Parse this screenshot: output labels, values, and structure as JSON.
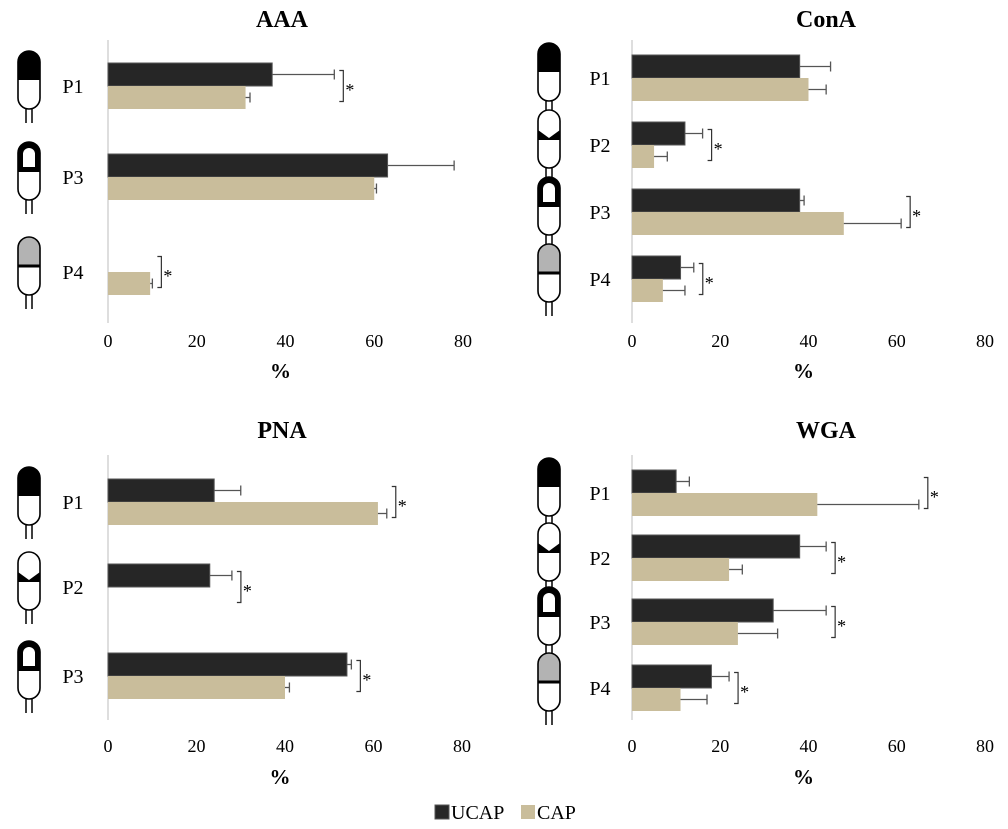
{
  "colors": {
    "UCAP": "#262626",
    "CAP": "#c9bd9b",
    "gray_fill": "#b3b3b3"
  },
  "legend": [
    "UCAP",
    "CAP"
  ],
  "chart_data": [
    {
      "type": "bar",
      "orientation": "horizontal",
      "title": "AAA",
      "xlabel": "%",
      "xlim": [
        0,
        80
      ],
      "xticks": [
        "0",
        "20",
        "40",
        "60",
        "80"
      ],
      "categories": [
        "P1",
        "P3",
        "P4"
      ],
      "icons": [
        "top-filled-cell-icon",
        "ring-cell-icon",
        "gray-cell-icon"
      ],
      "series": [
        {
          "name": "UCAP",
          "values": [
            37,
            63,
            0
          ],
          "errors": [
            14,
            15,
            0
          ]
        },
        {
          "name": "CAP",
          "values": [
            31,
            60,
            9.5
          ],
          "errors": [
            1,
            0.5,
            0.5
          ]
        }
      ],
      "significance": [
        "*",
        "",
        "*"
      ]
    },
    {
      "type": "bar",
      "orientation": "horizontal",
      "title": "ConA",
      "xlabel": "%",
      "xlim": [
        0,
        80
      ],
      "xticks": [
        "0",
        "20",
        "40",
        "60",
        "80"
      ],
      "categories": [
        "P1",
        "P2",
        "P3",
        "P4"
      ],
      "icons": [
        "top-filled-cell-icon",
        "band-cell-icon",
        "ring-cell-icon",
        "gray-cell-icon"
      ],
      "series": [
        {
          "name": "UCAP",
          "values": [
            38,
            12,
            38,
            11
          ],
          "errors": [
            7,
            4,
            1,
            3
          ]
        },
        {
          "name": "CAP",
          "values": [
            40,
            5,
            48,
            7
          ],
          "errors": [
            4,
            3,
            13,
            5
          ]
        }
      ],
      "significance": [
        "",
        "*",
        "*",
        "*"
      ]
    },
    {
      "type": "bar",
      "orientation": "horizontal",
      "title": "PNA",
      "xlabel": "%",
      "xlim": [
        0,
        80
      ],
      "xticks": [
        "0",
        "20",
        "40",
        "60",
        "80"
      ],
      "categories": [
        "P1",
        "P2",
        "P3"
      ],
      "icons": [
        "top-filled-cell-icon",
        "band-cell-icon",
        "ring-cell-icon"
      ],
      "series": [
        {
          "name": "UCAP",
          "values": [
            24,
            23,
            54
          ],
          "errors": [
            6,
            5,
            1
          ]
        },
        {
          "name": "CAP",
          "values": [
            61,
            0,
            40
          ],
          "errors": [
            2,
            0,
            1
          ]
        }
      ],
      "significance": [
        "*",
        "*",
        "*"
      ]
    },
    {
      "type": "bar",
      "orientation": "horizontal",
      "title": "WGA",
      "xlabel": "%",
      "xlim": [
        0,
        80
      ],
      "xticks": [
        "0",
        "20",
        "40",
        "60",
        "80"
      ],
      "categories": [
        "P1",
        "P2",
        "P3",
        "P4"
      ],
      "icons": [
        "top-filled-cell-icon",
        "band-cell-icon",
        "ring-cell-icon",
        "gray-cell-icon"
      ],
      "series": [
        {
          "name": "UCAP",
          "values": [
            10,
            38,
            32,
            18
          ],
          "errors": [
            3,
            6,
            12,
            4
          ]
        },
        {
          "name": "CAP",
          "values": [
            42,
            22,
            24,
            11
          ],
          "errors": [
            23,
            3,
            9,
            6
          ]
        }
      ],
      "significance": [
        "*",
        "*",
        "*",
        "*"
      ]
    }
  ]
}
